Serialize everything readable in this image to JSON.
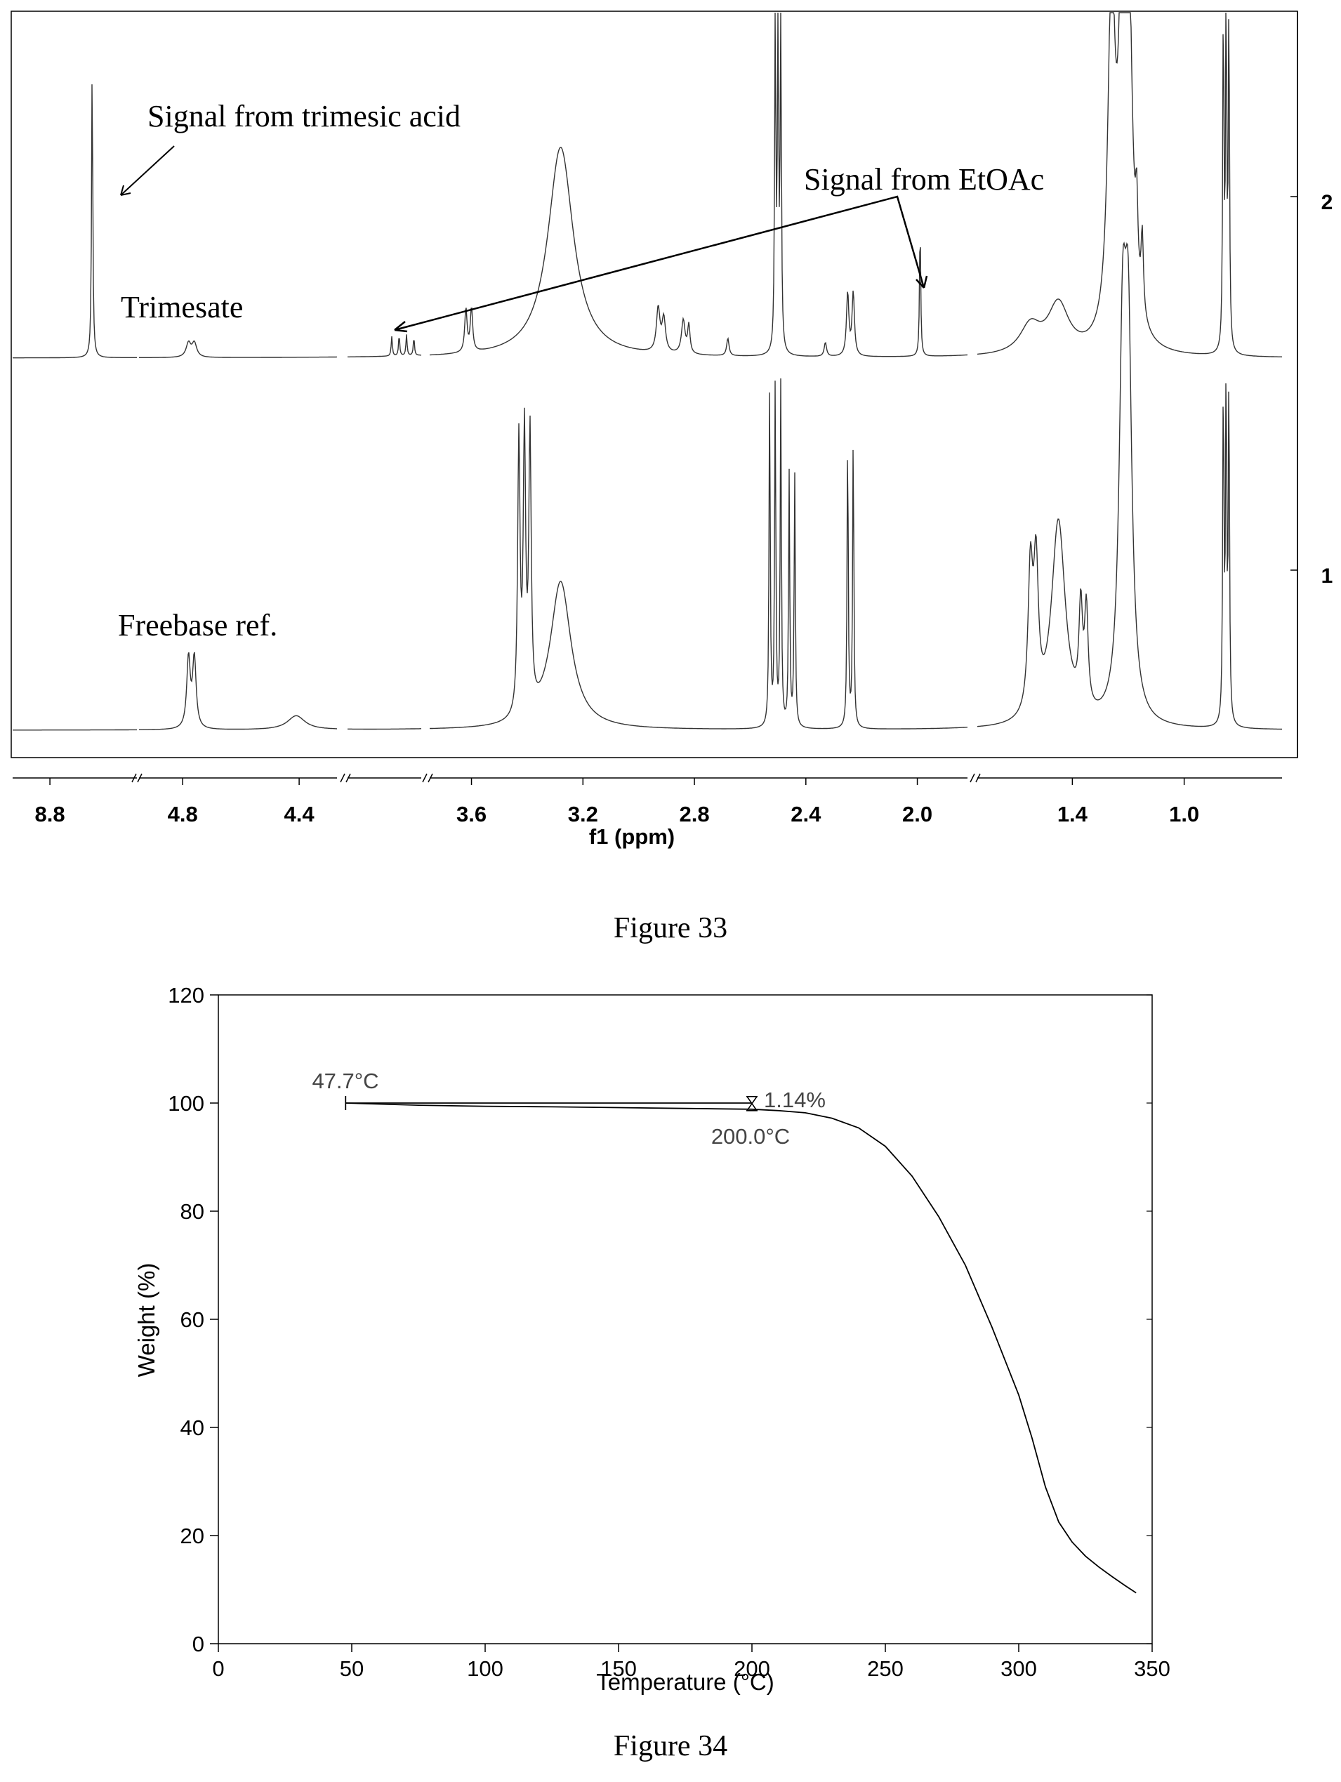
{
  "charts": [
    {
      "figure_caption": "Figure 33",
      "type": "line",
      "xlabel": "f1 (ppm)",
      "x_ticks": [
        "8.8",
        "4.8",
        "4.4",
        "3.6",
        "3.2",
        "2.8",
        "2.4",
        "2.0",
        "1.4",
        "1.0"
      ],
      "trace_labels": [
        "2",
        "1"
      ],
      "annotations": {
        "trimesic": "Signal from trimesic acid",
        "etoac": "Signal from EtOAc",
        "trimesate": "Trimesate",
        "freebase": "Freebase ref."
      },
      "series": [
        {
          "label": "Trimesate",
          "trace_number": "2",
          "peaks_ppm": [
            8.63,
            4.78,
            4.76,
            4.03,
            4.01,
            3.99,
            3.97,
            3.62,
            3.6,
            3.28,
            2.93,
            2.91,
            2.84,
            2.82,
            2.68,
            2.51,
            2.5,
            2.49,
            2.33,
            2.25,
            2.23,
            1.99,
            1.55,
            1.45,
            1.26,
            1.22,
            1.2,
            1.17,
            1.15,
            0.86,
            0.85,
            0.84
          ]
        },
        {
          "label": "Freebase ref.",
          "trace_number": "1",
          "peaks_ppm": [
            4.78,
            4.76,
            4.41,
            3.43,
            3.41,
            3.39,
            3.28,
            2.53,
            2.51,
            2.49,
            2.46,
            2.44,
            2.25,
            2.23,
            1.55,
            1.53,
            1.45,
            1.37,
            1.35,
            1.22,
            1.2,
            0.86,
            0.85,
            0.84
          ]
        }
      ]
    },
    {
      "figure_caption": "Figure 34",
      "type": "line",
      "xlabel": "Temperature (°C)",
      "ylabel": "Weight (%)",
      "xlim": [
        0,
        350
      ],
      "ylim": [
        0,
        120
      ],
      "x_ticks": [
        0,
        50,
        100,
        150,
        200,
        250,
        300,
        350
      ],
      "y_ticks": [
        0,
        20,
        40,
        60,
        80,
        100,
        120
      ],
      "annotations": {
        "start_temp": "47.7°C",
        "end_temp": "200.0°C",
        "weight_loss": "1.14%"
      },
      "series": [
        {
          "x": [
            47.7,
            75,
            100,
            125,
            150,
            175,
            200,
            210,
            220,
            230,
            240,
            250,
            260,
            270,
            280,
            290,
            300,
            305,
            310,
            315,
            320,
            325,
            330,
            335,
            340,
            344
          ],
          "y": [
            100.0,
            99.6,
            99.4,
            99.3,
            99.15,
            99.0,
            98.86,
            98.6,
            98.2,
            97.2,
            95.4,
            92.0,
            86.5,
            79.0,
            70.0,
            58.5,
            46.0,
            38.0,
            29.0,
            22.5,
            18.8,
            16.2,
            14.2,
            12.4,
            10.7,
            9.4
          ]
        }
      ]
    }
  ]
}
